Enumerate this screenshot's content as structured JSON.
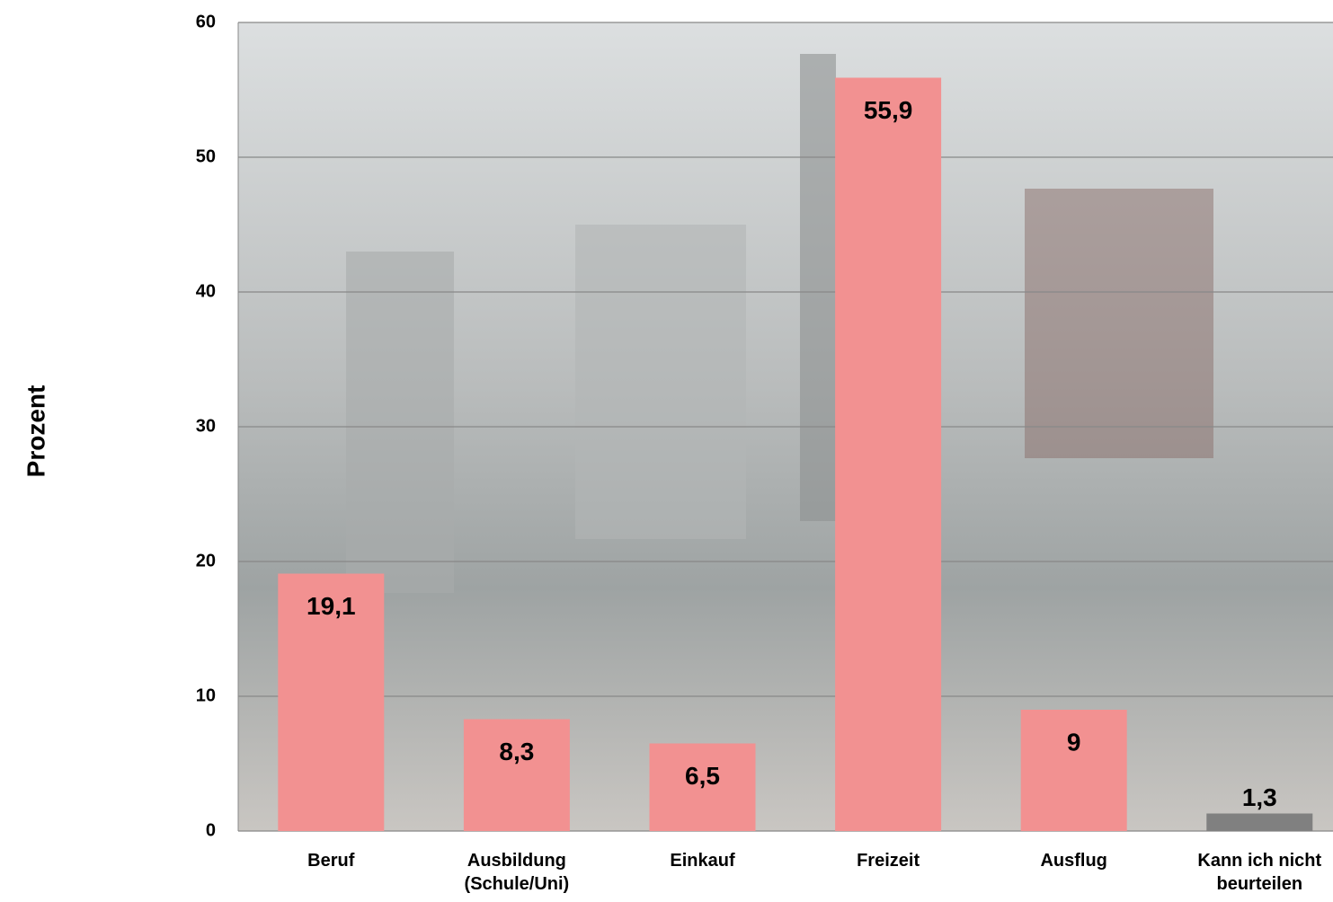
{
  "chart_data": {
    "type": "bar",
    "y_axis_label": "Prozent",
    "categories": [
      "Beruf",
      "Ausbildung (Schule/Uni)",
      "Einkauf",
      "Freizeit",
      "Ausflug",
      "Kann ich nicht beurteilen"
    ],
    "values": [
      19.1,
      8.3,
      6.5,
      55.9,
      9,
      1.3
    ],
    "value_labels": [
      "19,1",
      "8,3",
      "6,5",
      "55,9",
      "9",
      "1,3"
    ],
    "colors": [
      "#f29191",
      "#f29191",
      "#f29191",
      "#f29191",
      "#f29191",
      "#808080"
    ],
    "ylim": [
      0,
      60
    ],
    "yticks": [
      0,
      10,
      20,
      30,
      40,
      50,
      60
    ],
    "grid": true
  }
}
